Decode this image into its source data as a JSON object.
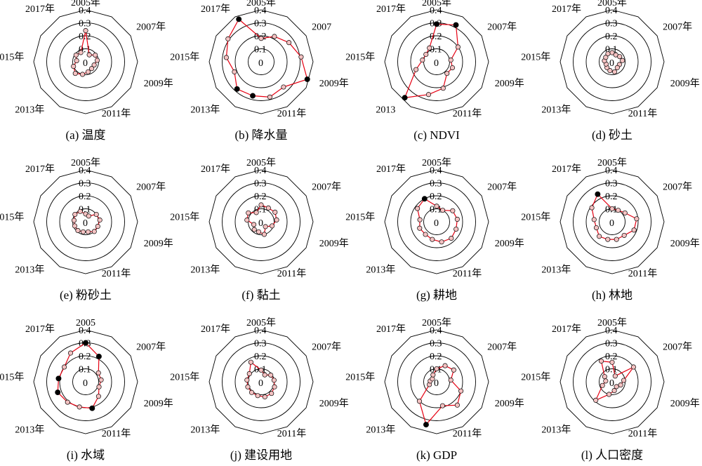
{
  "chart_data": [
    {
      "type": "radar",
      "caption": "(a) 温度",
      "axis_labels": [
        "2005年",
        "2007年",
        "2009年",
        "2011年",
        "2013年",
        "2015年",
        "2017年"
      ],
      "ticks": [
        "0",
        "0.1",
        "0.2",
        "0.3",
        "0.4"
      ],
      "rlim": [
        0,
        0.4
      ],
      "years": [
        2005,
        2006,
        2007,
        2008,
        2009,
        2010,
        2011,
        2012,
        2013,
        2014,
        2015,
        2016,
        2017
      ],
      "values": [
        0.24,
        0.06,
        0.09,
        0.09,
        0.07,
        0.07,
        0.08,
        0.1,
        0.12,
        0.1,
        0.07,
        0.09,
        0.08
      ],
      "highlights": [
        false,
        false,
        false,
        false,
        false,
        false,
        false,
        false,
        false,
        false,
        false,
        false,
        false
      ]
    },
    {
      "type": "radar",
      "caption": "(b) 降水量",
      "axis_labels": [
        "2005年",
        "2007",
        "2009年",
        "2011年",
        "2013年",
        "2015年",
        "2017年"
      ],
      "ticks": [
        "0",
        "0.1",
        "0.2",
        "0.3",
        "0.4"
      ],
      "rlim": [
        0,
        0.4
      ],
      "years": [
        2005,
        2006,
        2007,
        2008,
        2009,
        2010,
        2011,
        2012,
        2013,
        2014,
        2015,
        2016,
        2017
      ],
      "values": [
        0.18,
        0.22,
        0.26,
        0.31,
        0.38,
        0.26,
        0.28,
        0.27,
        0.28,
        0.22,
        0.27,
        0.31,
        0.37
      ],
      "highlights": [
        false,
        false,
        false,
        false,
        true,
        false,
        false,
        true,
        true,
        false,
        false,
        false,
        true
      ]
    },
    {
      "type": "radar",
      "caption": "(c) NDVI",
      "axis_labels": [
        "2005年",
        "2007年",
        "2009年",
        "2011年",
        "2013",
        "2015年",
        "2017年"
      ],
      "ticks": [
        "0",
        "0.1",
        "0.2",
        "0.3",
        "0.4"
      ],
      "rlim": [
        0,
        0.4
      ],
      "years": [
        2005,
        2006,
        2007,
        2008,
        2009,
        2010,
        2011,
        2012,
        2013,
        2014,
        2015,
        2016,
        2017
      ],
      "values": [
        0.29,
        0.32,
        0.2,
        0.11,
        0.13,
        0.12,
        0.21,
        0.26,
        0.37,
        0.17,
        0.11,
        0.1,
        0.12
      ],
      "highlights": [
        true,
        true,
        false,
        false,
        false,
        false,
        false,
        false,
        true,
        false,
        false,
        false,
        false
      ]
    },
    {
      "type": "radar",
      "caption": "(d) 砂土",
      "axis_labels": [
        "2005年",
        "2007年",
        "2009年",
        "2011年",
        "2013年",
        "2015年",
        "2017年"
      ],
      "ticks": [
        "0",
        "0.1",
        "0.2",
        "0.3",
        "0.4"
      ],
      "rlim": [
        0,
        0.4
      ],
      "years": [
        2005,
        2006,
        2007,
        2008,
        2009,
        2010,
        2011,
        2012,
        2013,
        2014,
        2015,
        2016,
        2017
      ],
      "values": [
        0.07,
        0.06,
        0.07,
        0.08,
        0.06,
        0.06,
        0.08,
        0.07,
        0.06,
        0.05,
        0.06,
        0.06,
        0.07
      ],
      "highlights": [
        false,
        false,
        false,
        false,
        false,
        false,
        false,
        false,
        false,
        false,
        false,
        false,
        false
      ]
    },
    {
      "type": "radar",
      "caption": "(e) 粉砂土",
      "axis_labels": [
        "2005年",
        "2007年",
        "2009年",
        "2011年",
        "2013年",
        "2015年",
        "2017年"
      ],
      "ticks": [
        "0",
        "0.1",
        "0.2",
        "0.3",
        "0.4"
      ],
      "rlim": [
        0,
        0.4
      ],
      "years": [
        2005,
        2006,
        2007,
        2008,
        2009,
        2010,
        2011,
        2012,
        2013,
        2014,
        2015,
        2016,
        2017
      ],
      "values": [
        0.06,
        0.05,
        0.1,
        0.11,
        0.1,
        0.1,
        0.08,
        0.08,
        0.09,
        0.09,
        0.09,
        0.1,
        0.09
      ],
      "highlights": [
        false,
        false,
        false,
        false,
        false,
        false,
        false,
        false,
        false,
        false,
        false,
        false,
        false
      ]
    },
    {
      "type": "radar",
      "caption": "(f) 黏土",
      "axis_labels": [
        "2005年",
        "2007年",
        "2009年",
        "2011年",
        "2013年",
        "2015年",
        "2017年"
      ],
      "ticks": [
        "0",
        "0.1",
        "0.2",
        "0.3",
        "0.4"
      ],
      "rlim": [
        0,
        0.4
      ],
      "years": [
        2005,
        2006,
        2007,
        2008,
        2009,
        2010,
        2011,
        2012,
        2013,
        2014,
        2015,
        2016,
        2017
      ],
      "values": [
        0.13,
        0.12,
        0.13,
        0.12,
        0.09,
        0.05,
        0.1,
        0.08,
        0.08,
        0.06,
        0.11,
        0.12,
        0.08
      ],
      "highlights": [
        false,
        false,
        false,
        false,
        false,
        false,
        false,
        false,
        false,
        false,
        false,
        false,
        false
      ]
    },
    {
      "type": "radar",
      "caption": "(g) 耕地",
      "axis_labels": [
        "2005年",
        "2007年",
        "2009年",
        "2011年",
        "2013年",
        "2015年",
        "2017年"
      ],
      "ticks": [
        "0",
        "0.1",
        "0.2",
        "0.3",
        "0.4"
      ],
      "rlim": [
        0,
        0.4
      ],
      "years": [
        2005,
        2006,
        2007,
        2008,
        2009,
        2010,
        2011,
        2012,
        2013,
        2014,
        2015,
        2016,
        2017
      ],
      "values": [
        0.12,
        0.1,
        0.15,
        0.16,
        0.16,
        0.17,
        0.16,
        0.14,
        0.13,
        0.14,
        0.13,
        0.18,
        0.2
      ],
      "highlights": [
        false,
        false,
        false,
        false,
        false,
        false,
        false,
        false,
        false,
        false,
        false,
        false,
        true
      ]
    },
    {
      "type": "radar",
      "caption": "(h) 林地",
      "axis_labels": [
        "2005年",
        "2007年",
        "2009年",
        "2011年",
        "2013年",
        "2015年",
        "2017年"
      ],
      "ticks": [
        "0",
        "0.1",
        "0.2",
        "0.3",
        "0.4"
      ],
      "rlim": [
        0,
        0.4
      ],
      "years": [
        2005,
        2006,
        2007,
        2008,
        2009,
        2010,
        2011,
        2012,
        2013,
        2014,
        2015,
        2016,
        2017
      ],
      "values": [
        0.1,
        0.1,
        0.12,
        0.19,
        0.18,
        0.14,
        0.14,
        0.14,
        0.15,
        0.13,
        0.14,
        0.19,
        0.24
      ],
      "highlights": [
        false,
        false,
        false,
        false,
        false,
        false,
        false,
        false,
        false,
        false,
        false,
        false,
        true
      ]
    },
    {
      "type": "radar",
      "caption": "(i) 水域",
      "axis_labels": [
        "2005",
        "2007年",
        "2009年",
        "2011年",
        "2013年",
        "2015年",
        "2017年"
      ],
      "ticks": [
        "0",
        "0.1",
        "0.2",
        "0.3",
        "0.4"
      ],
      "rlim": [
        0,
        0.4
      ],
      "years": [
        2005,
        2006,
        2007,
        2008,
        2009,
        2010,
        2011,
        2012,
        2013,
        2014,
        2015,
        2016,
        2017
      ],
      "values": [
        0.3,
        0.22,
        0.12,
        0.12,
        0.11,
        0.15,
        0.21,
        0.2,
        0.21,
        0.23,
        0.21,
        0.2,
        0.25
      ],
      "highlights": [
        true,
        true,
        false,
        false,
        false,
        false,
        true,
        false,
        false,
        true,
        true,
        false,
        false
      ]
    },
    {
      "type": "radar",
      "caption": "(j) 建设用地",
      "axis_labels": [
        "2005年",
        "2007年",
        "2009年",
        "2011年",
        "2013年",
        "2015年",
        "2017年"
      ],
      "ticks": [
        "0",
        "0.1",
        "0.2",
        "0.3",
        "0.4"
      ],
      "rlim": [
        0,
        0.4
      ],
      "years": [
        2005,
        2006,
        2007,
        2008,
        2009,
        2010,
        2011,
        2012,
        2013,
        2014,
        2015,
        2016,
        2017
      ],
      "values": [
        0.09,
        0.06,
        0.09,
        0.1,
        0.11,
        0.12,
        0.12,
        0.11,
        0.11,
        0.11,
        0.11,
        0.11,
        0.17
      ],
      "highlights": [
        false,
        false,
        false,
        false,
        false,
        false,
        false,
        false,
        false,
        false,
        false,
        false,
        false
      ]
    },
    {
      "type": "radar",
      "caption": "(k) GDP",
      "axis_labels": [
        "2005年",
        "2007年",
        "2009年",
        "2011年",
        "2013年",
        "2015年",
        "2017年"
      ],
      "ticks": [
        "0",
        "0.1",
        "0.2",
        "0.3",
        "0.4"
      ],
      "rlim": [
        0,
        0.4
      ],
      "years": [
        2005,
        2006,
        2007,
        2008,
        2009,
        2010,
        2011,
        2012,
        2013,
        2014,
        2015,
        2016,
        2017
      ],
      "values": [
        0.1,
        0.14,
        0.16,
        0.11,
        0.2,
        0.24,
        0.19,
        0.34,
        0.2,
        0.06,
        0.05,
        0.04,
        0.06
      ],
      "highlights": [
        false,
        false,
        false,
        false,
        false,
        false,
        false,
        true,
        false,
        false,
        false,
        false,
        false
      ]
    },
    {
      "type": "radar",
      "caption": "(l) 人口密度",
      "axis_labels": [
        "2005年",
        "2007年",
        "2009年",
        "2011年",
        "2013年",
        "2015年",
        "2017年"
      ],
      "ticks": [
        "0",
        "0.1",
        "0.2",
        "0.3",
        "0.4"
      ],
      "rlim": [
        0,
        0.4
      ],
      "years": [
        2005,
        2006,
        2007,
        2008,
        2009,
        2010,
        2011,
        2012,
        2013,
        2014,
        2015,
        2016,
        2017
      ],
      "values": [
        0.15,
        0.05,
        0.2,
        0.09,
        0.07,
        0.05,
        0.07,
        0.1,
        0.19,
        0.08,
        0.05,
        0.07,
        0.18
      ],
      "highlights": [
        false,
        false,
        false,
        false,
        false,
        false,
        false,
        false,
        false,
        false,
        false,
        false,
        false
      ]
    }
  ]
}
